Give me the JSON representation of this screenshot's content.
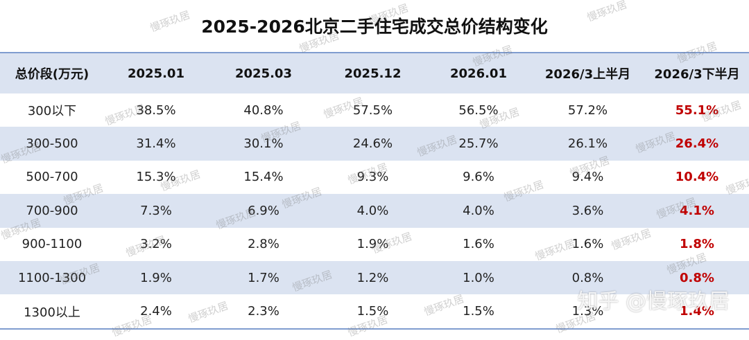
{
  "title": "2025-2026北京二手住宅成交总价结构变化",
  "table": {
    "header": [
      "总价段(万元)",
      "2025.01",
      "2025.03",
      "2025.12",
      "2026.01",
      "2026/3上半月",
      "2026/3下半月"
    ],
    "rows": [
      [
        "300以下",
        "38.5%",
        "40.8%",
        "57.5%",
        "56.5%",
        "57.2%",
        "55.1%"
      ],
      [
        "300-500",
        "31.4%",
        "30.1%",
        "24.6%",
        "25.7%",
        "26.1%",
        "26.4%"
      ],
      [
        "500-700",
        "15.3%",
        "15.4%",
        "9.3%",
        "9.6%",
        "9.4%",
        "10.4%"
      ],
      [
        "700-900",
        "7.3%",
        "6.9%",
        "4.0%",
        "4.0%",
        "3.6%",
        "4.1%"
      ],
      [
        "900-1100",
        "3.2%",
        "2.8%",
        "1.9%",
        "1.6%",
        "1.6%",
        "1.8%"
      ],
      [
        "1100-1300",
        "1.9%",
        "1.7%",
        "1.2%",
        "1.0%",
        "0.8%",
        "0.8%"
      ],
      [
        "1300以上",
        "2.4%",
        "2.3%",
        "1.5%",
        "1.5%",
        "1.3%",
        "1.4%"
      ]
    ]
  },
  "watermark": "慢琢玖居",
  "credit": "知乎 @慢琢玖居"
}
